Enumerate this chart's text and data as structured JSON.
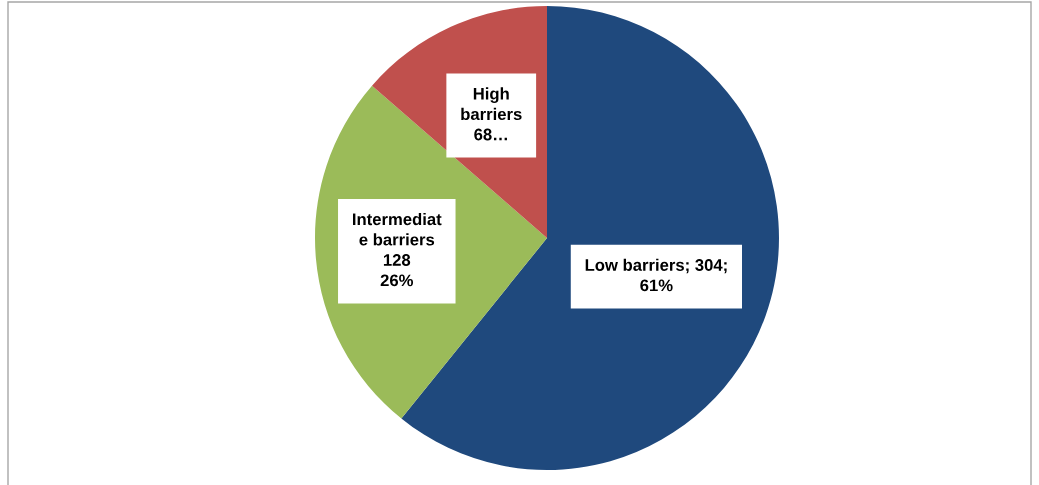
{
  "chart_data": {
    "type": "pie",
    "categories": [
      null,
      null,
      null
    ],
    "values": [
      304,
      128,
      68
    ],
    "colors": [
      "#1f497d",
      "#9bbb59",
      "#c0504d"
    ],
    "value_labels": [
      "Low barriers; 304;\n61%",
      "Intermediat\ne barriers\n128\n26%",
      "High\nbarriers\n68…"
    ]
  }
}
